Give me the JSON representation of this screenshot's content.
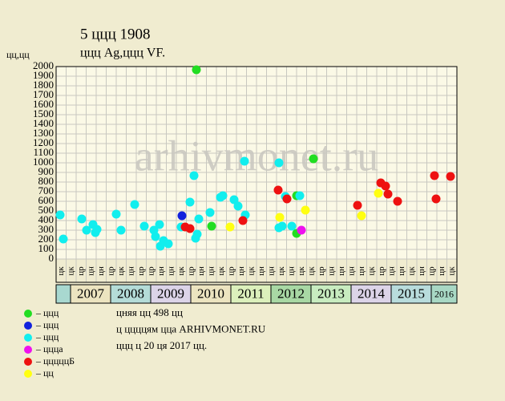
{
  "chart_data": {
    "type": "scatter",
    "title": "5 ццц 1908",
    "subtitle": "ццц Ag,ццц VF.",
    "y_label": "цц,цц",
    "watermark": "arhivmonet.ru",
    "xlim": [
      2006.64,
      2016.64
    ],
    "xticks": [
      2007,
      2008,
      2009,
      2010,
      2011,
      2012,
      2013,
      2014,
      2015,
      2016
    ],
    "year_colors": [
      "#ece4c0",
      "#b4dcd8",
      "#dcd4e8",
      "#ece4c0",
      "#dcf0bc",
      "#a8d8a4",
      "#c8ecc0",
      "#dcd4e8",
      "#b8dcdc",
      "#a8d8c4"
    ],
    "ylim": [
      0,
      2000
    ],
    "yticks": [
      0,
      100,
      200,
      300,
      400,
      500,
      600,
      700,
      800,
      900,
      1000,
      1100,
      1200,
      1300,
      1400,
      1500,
      1600,
      1700,
      1800,
      1900,
      2000
    ],
    "grid": true,
    "column_labels": [
      "цк",
      "цк",
      "цр",
      "цн",
      "цн",
      "цр",
      "цк",
      "цн",
      "цр",
      "цр",
      "цн",
      "цн",
      "цк",
      "цр",
      "цн",
      "цн",
      "цк",
      "цр",
      "цн",
      "цк",
      "цн",
      "цн",
      "цк",
      "цн",
      "цк",
      "цк",
      "цр",
      "цн",
      "цн",
      "цн",
      "цн",
      "цк",
      "цр",
      "цн",
      "цн",
      "цк",
      "цн",
      "цр",
      "цн",
      "цк"
    ],
    "series": [
      {
        "name": "– ццц",
        "color": "#22dd22",
        "x": [
          2010.14,
          2010.52,
          2012.64,
          2012.64,
          2013.06
        ],
        "values": [
          1967,
          342,
          658,
          267,
          1042
        ]
      },
      {
        "name": "– ццц",
        "color": "#1122dd",
        "x": [
          2009.78
        ],
        "values": [
          450
        ]
      },
      {
        "name": "– ццц",
        "color": "#11eeee",
        "x": [
          2006.74,
          2006.82,
          2007.28,
          2007.4,
          2007.56,
          2007.62,
          2007.66,
          2008.14,
          2008.26,
          2008.6,
          2008.84,
          2009.08,
          2009.12,
          2009.22,
          2009.24,
          2009.32,
          2009.44,
          2009.76,
          2009.98,
          2010.08,
          2010.12,
          2010.16,
          2010.2,
          2010.48,
          2010.74,
          2010.8,
          2011.08,
          2011.18,
          2011.36,
          2011.34,
          2012.2,
          2012.2,
          2012.28,
          2012.36,
          2012.52,
          2012.72
        ],
        "values": [
          458,
          208,
          417,
          300,
          358,
          275,
          308,
          467,
          300,
          567,
          342,
          300,
          233,
          358,
          133,
          192,
          158,
          333,
          592,
          867,
          217,
          258,
          417,
          483,
          642,
          658,
          617,
          550,
          458,
          1017,
          1000,
          325,
          342,
          650,
          342,
          658
        ]
      },
      {
        "name": "– ццца",
        "color": "#ee11ee",
        "x": [
          2012.76
        ],
        "values": [
          300
        ]
      },
      {
        "name": "– цццццБ",
        "color": "#ee1111",
        "x": [
          2009.86,
          2009.98,
          2011.3,
          2012.18,
          2012.4,
          2014.16,
          2014.74,
          2014.86,
          2014.92,
          2015.16,
          2016.08,
          2016.12,
          2016.48
        ],
        "values": [
          333,
          317,
          400,
          717,
          625,
          558,
          792,
          758,
          675,
          600,
          867,
          625,
          858
        ]
      },
      {
        "name": "– цц",
        "color": "#ffff11",
        "x": [
          2010.98,
          2012.22,
          2012.86,
          2014.26,
          2014.68
        ],
        "values": [
          333,
          433,
          508,
          450,
          683
        ]
      }
    ],
    "footer": [
      "цняя цц 498 цц",
      "ц ццццям цца ARHIVMONET.RU",
      "ццц ц 20 ця 2017 цц."
    ]
  }
}
